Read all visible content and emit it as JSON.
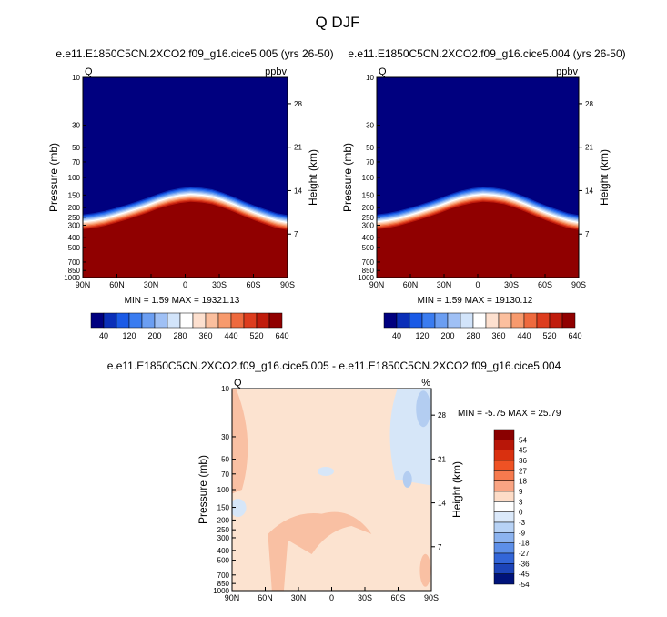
{
  "figure_title": "Q DJF",
  "chart_data": [
    {
      "type": "heatmap",
      "title": "e.e11.E1850C5CN.2XCO2.f09_g16.cice5.005 (yrs 26-50)",
      "left_label": "Q",
      "units": "ppbv",
      "ylabel": "Pressure (mb)",
      "ylabel_right": "Height (km)",
      "x_ticks": [
        "90N",
        "60N",
        "30N",
        "0",
        "30S",
        "60S",
        "90S"
      ],
      "y_ticks": [
        "10",
        "30",
        "50",
        "70",
        "100",
        "150",
        "200",
        "250",
        "300",
        "400",
        "500",
        "700",
        "850",
        "1000"
      ],
      "y_ticks_right": [
        "28",
        "21",
        "14",
        "7"
      ],
      "min_label": "MIN =",
      "min_value": "1.59",
      "max_label": "MAX =",
      "max_value": "19321.13",
      "colorbar_labels": [
        "40",
        "120",
        "200",
        "280",
        "360",
        "440",
        "520",
        "640"
      ],
      "tropopause_top_mb": [
        330,
        320,
        305,
        285,
        265,
        245,
        225,
        205,
        190,
        180,
        175,
        178,
        185,
        200,
        220,
        245,
        270,
        295,
        320,
        335
      ]
    },
    {
      "type": "heatmap",
      "title": "e.e11.E1850C5CN.2XCO2.f09_g16.cice5.004 (yrs 26-50)",
      "left_label": "Q",
      "units": "ppbv",
      "ylabel": "Pressure (mb)",
      "ylabel_right": "Height (km)",
      "x_ticks": [
        "90N",
        "60N",
        "30N",
        "0",
        "30S",
        "60S",
        "90S"
      ],
      "y_ticks": [
        "10",
        "30",
        "50",
        "70",
        "100",
        "150",
        "200",
        "250",
        "300",
        "400",
        "500",
        "700",
        "850",
        "1000"
      ],
      "y_ticks_right": [
        "28",
        "21",
        "14",
        "7"
      ],
      "min_label": "MIN =",
      "min_value": "1.59",
      "max_label": "MAX =",
      "max_value": "19130.12",
      "colorbar_labels": [
        "40",
        "120",
        "200",
        "280",
        "360",
        "440",
        "520",
        "640"
      ],
      "tropopause_top_mb": [
        330,
        320,
        305,
        285,
        265,
        245,
        225,
        205,
        190,
        180,
        175,
        178,
        185,
        200,
        220,
        245,
        270,
        295,
        320,
        335
      ]
    },
    {
      "type": "heatmap",
      "title": "e.e11.E1850C5CN.2XCO2.f09_g16.cice5.005 - e.e11.E1850C5CN.2XCO2.f09_g16.cice5.004",
      "left_label": "Q",
      "units": "%",
      "ylabel": "Pressure (mb)",
      "ylabel_right": "Height (km)",
      "x_ticks": [
        "90N",
        "60N",
        "30N",
        "0",
        "30S",
        "60S",
        "90S"
      ],
      "y_ticks": [
        "10",
        "30",
        "50",
        "70",
        "100",
        "150",
        "200",
        "250",
        "300",
        "400",
        "500",
        "700",
        "850",
        "1000"
      ],
      "y_ticks_right": [
        "28",
        "21",
        "14",
        "7"
      ],
      "min_label": "MIN =",
      "min_value": "-5.75",
      "max_label": "MAX =",
      "max_value": "25.79",
      "colorbar_labels": [
        "54",
        "45",
        "36",
        "27",
        "18",
        "9",
        "3",
        "0",
        "-3",
        "-9",
        "-18",
        "-27",
        "-36",
        "-45",
        "-54"
      ]
    }
  ],
  "colors": {
    "seq_colorbar": [
      "#00007f",
      "#0a2fb8",
      "#1a5ae6",
      "#3a7cf0",
      "#6b9ef2",
      "#9fc0f5",
      "#d2e4fa",
      "#ffffff",
      "#fde0cf",
      "#fbbf9e",
      "#f79a6d",
      "#ee6a3e",
      "#dd3d1e",
      "#c01c0c",
      "#900000"
    ],
    "diff_colorbar": [
      "#8a0000",
      "#b81608",
      "#d9300f",
      "#ef5224",
      "#f67a4e",
      "#f9a483",
      "#fddcc7",
      "#ffffff",
      "#dbe9fa",
      "#b7d2f5",
      "#8cb3ef",
      "#5d8fe8",
      "#3366d8",
      "#1c44b8",
      "#00137a"
    ],
    "deep_blue": "#00007f",
    "dark_red": "#900000",
    "diff_base": "#fce3d0",
    "diff_pos": "#f9c0a3",
    "diff_neg": "#d6e6f8",
    "diff_neg2": "#b3cdf1"
  }
}
